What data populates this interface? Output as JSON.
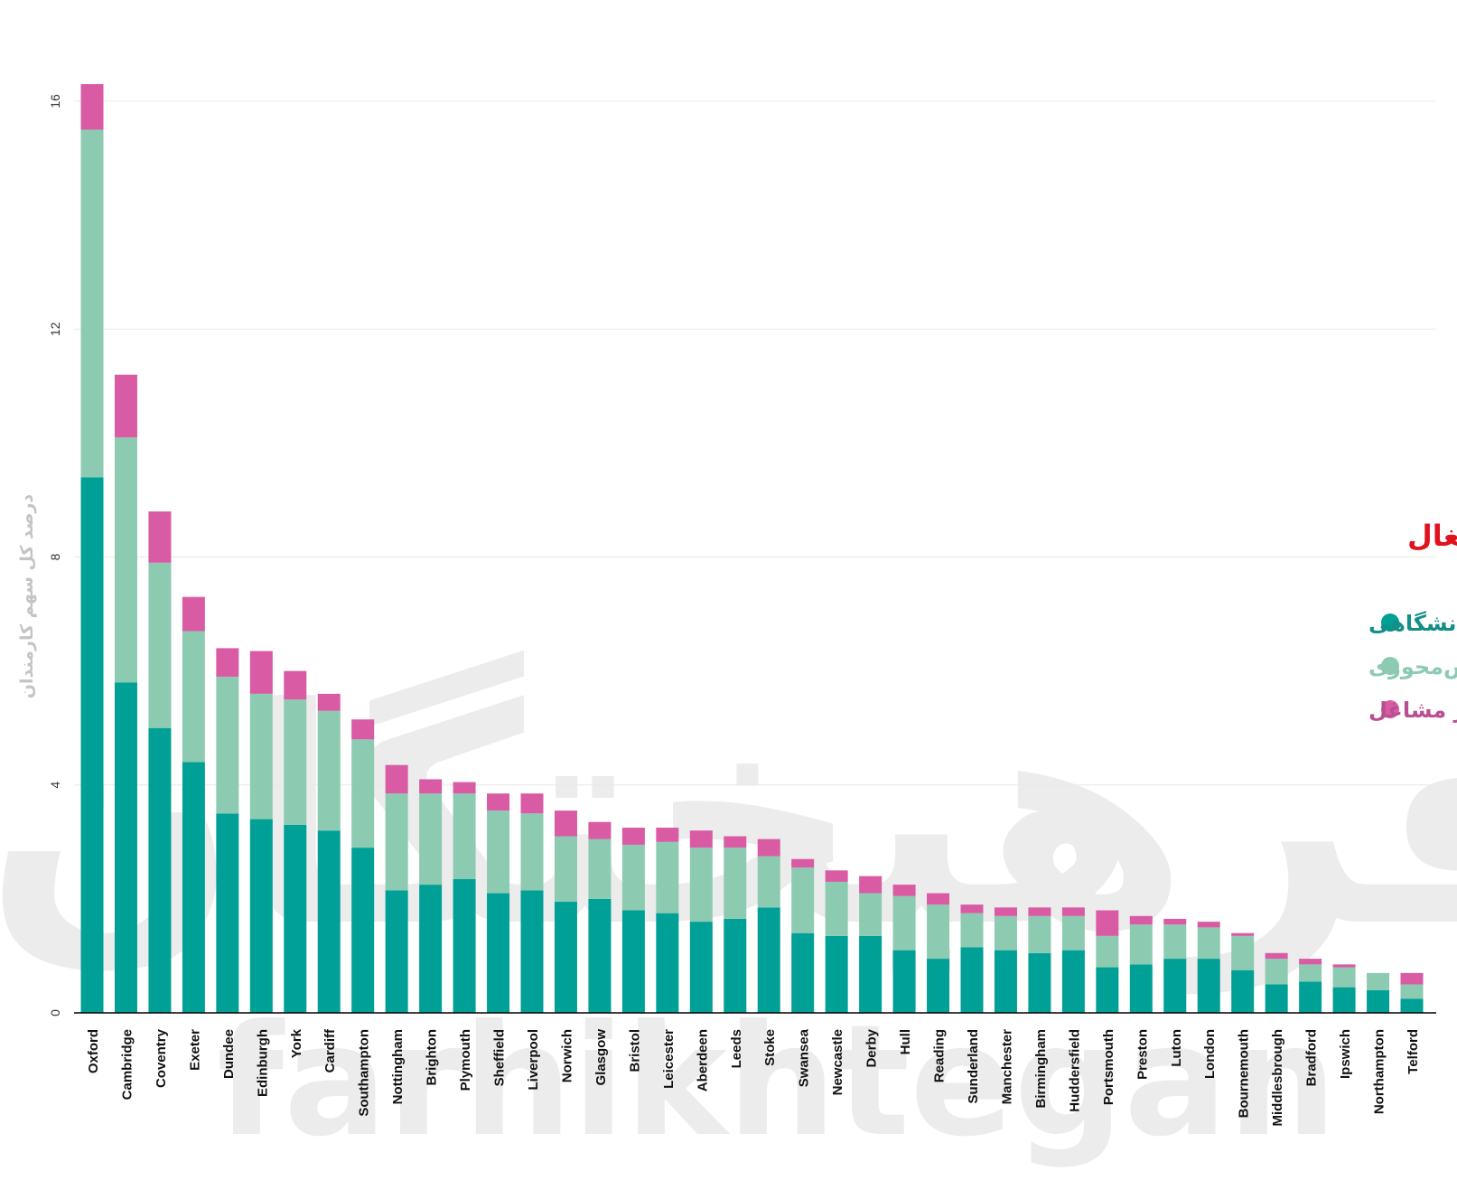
{
  "chart_data": {
    "type": "bar",
    "stacked": true,
    "title": "سهم دانشگاه‌ها از کل کارمندان شهری برحسب اشتغال",
    "ylabel": "درصد کل سهم کارمندان",
    "xlabel": "",
    "ylim": [
      0,
      16
    ],
    "yticks": [
      "0",
      "4",
      "8",
      "12",
      "16"
    ],
    "grid": true,
    "legend_position": "right",
    "watermark": "فرهیختگان farhikhtegan",
    "categories": [
      "Oxford",
      "Cambridge",
      "Coventry",
      "Exeter",
      "Dundee",
      "Edinburgh",
      "York",
      "Cardiff",
      "Southampton",
      "Nottingham",
      "Brighton",
      "Plymouth",
      "Sheffield",
      "Liverpool",
      "Norwich",
      "Glasgow",
      "Bristol",
      "Leicester",
      "Aberdeen",
      "Leeds",
      "Stoke",
      "Swansea",
      "Newcastle",
      "Derby",
      "Hull",
      "Reading",
      "Sunderland",
      "Manchester",
      "Birmingham",
      "Huddersfield",
      "Portsmouth",
      "Preston",
      "Luton",
      "London",
      "Bournemouth",
      "Middlesbrough",
      "Bradford",
      "Ipswich",
      "Northampton",
      "Telford"
    ],
    "series": [
      {
        "name": "دانشگاهی",
        "color": "#00a096",
        "values": [
          9.4,
          5.8,
          5.0,
          4.4,
          3.5,
          3.4,
          3.3,
          3.2,
          2.9,
          2.15,
          2.25,
          2.35,
          2.1,
          2.15,
          1.95,
          2.0,
          1.8,
          1.75,
          1.6,
          1.65,
          1.85,
          1.4,
          1.35,
          1.35,
          1.1,
          0.95,
          1.15,
          1.1,
          1.05,
          1.1,
          0.8,
          0.85,
          0.95,
          0.95,
          0.75,
          0.5,
          0.55,
          0.45,
          0.4,
          0.25
        ]
      },
      {
        "name": "غیردانشگاهی: مشاغل دانش‌محوری",
        "color": "#8ccbb2",
        "values": [
          6.1,
          4.3,
          2.9,
          2.3,
          2.4,
          2.2,
          2.2,
          2.1,
          1.9,
          1.7,
          1.6,
          1.5,
          1.45,
          1.35,
          1.15,
          1.05,
          1.15,
          1.25,
          1.3,
          1.25,
          0.9,
          1.15,
          0.95,
          0.75,
          0.95,
          0.95,
          0.6,
          0.6,
          0.65,
          0.6,
          0.55,
          0.7,
          0.6,
          0.55,
          0.6,
          0.45,
          0.3,
          0.35,
          0.3,
          0.25
        ]
      },
      {
        "name": "غیردانشگاهی: سایر مشاغل",
        "color": "#d85ba3",
        "values": [
          0.8,
          1.1,
          0.9,
          0.6,
          0.5,
          0.75,
          0.5,
          0.3,
          0.35,
          0.5,
          0.25,
          0.2,
          0.3,
          0.35,
          0.45,
          0.3,
          0.3,
          0.25,
          0.3,
          0.2,
          0.3,
          0.15,
          0.2,
          0.3,
          0.2,
          0.2,
          0.15,
          0.15,
          0.15,
          0.15,
          0.45,
          0.15,
          0.1,
          0.1,
          0.05,
          0.1,
          0.1,
          0.05,
          0.0,
          0.2
        ]
      }
    ]
  }
}
